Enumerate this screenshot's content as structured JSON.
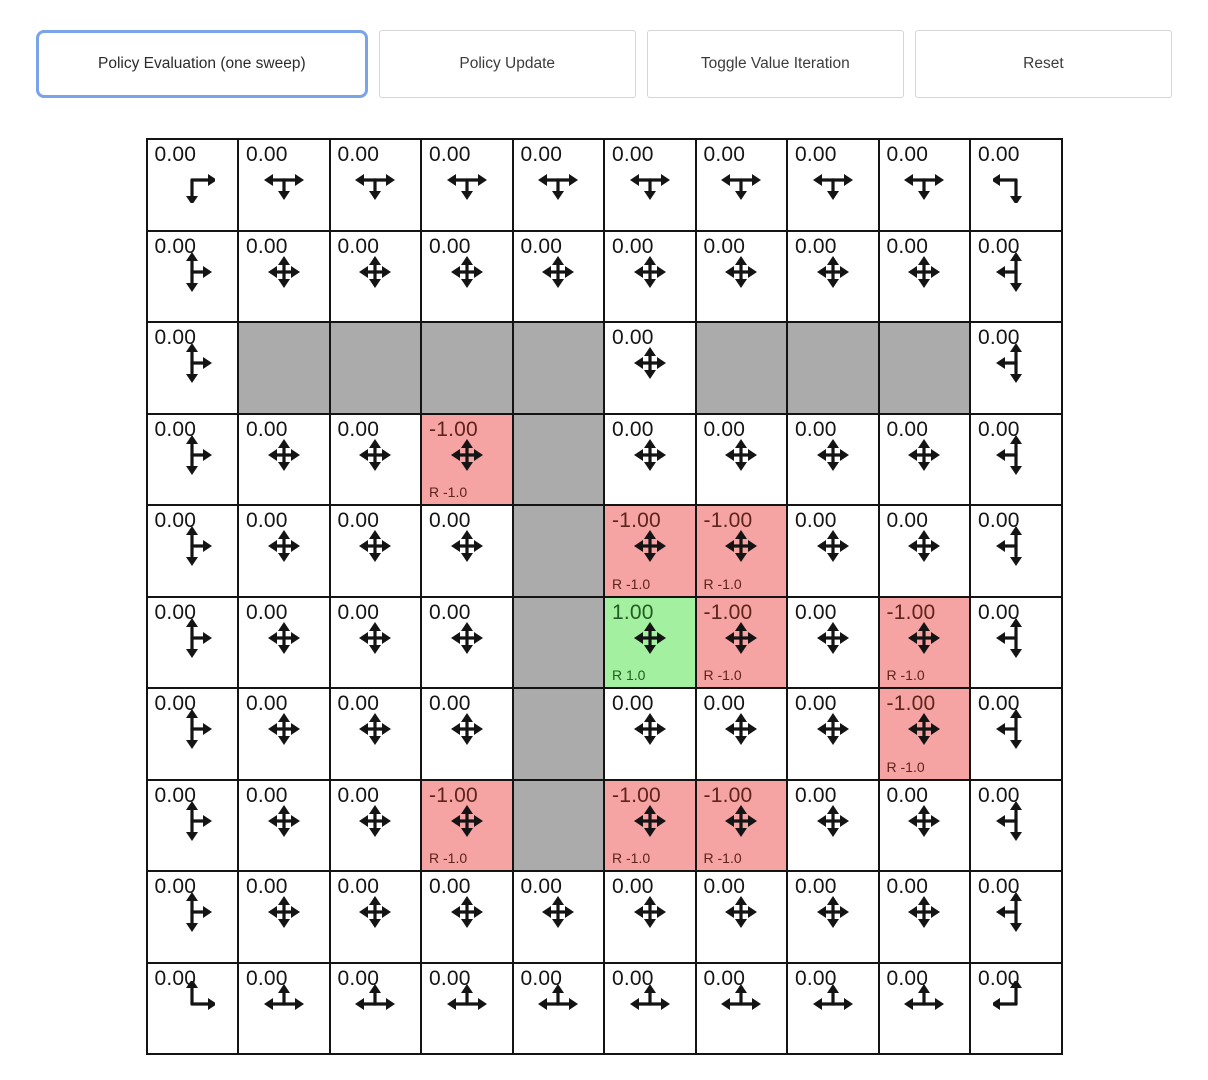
{
  "toolbar": {
    "buttons": [
      {
        "label": "Policy Evaluation (one sweep)",
        "focused": true
      },
      {
        "label": "Policy Update",
        "focused": false
      },
      {
        "label": "Toggle Value Iteration",
        "focused": false
      },
      {
        "label": "Reset",
        "focused": false
      }
    ]
  },
  "colors": {
    "wall_bg": "#ababab",
    "negative_bg": "#f5a3a3",
    "positive_bg": "#a3f0a0",
    "grid_line": "#141414",
    "text": "#141414",
    "negative_text": "#5d241a",
    "positive_text": "#215c21",
    "focus_ring": "#7ba3e8",
    "button_border": "#d6d6d6"
  },
  "grid": {
    "rows": 10,
    "cols": 10,
    "cells": [
      {
        "row": 0,
        "col": 0,
        "type": "normal",
        "value": "0.00",
        "dirs": "RD"
      },
      {
        "row": 0,
        "col": 1,
        "type": "normal",
        "value": "0.00",
        "dirs": "LRD"
      },
      {
        "row": 0,
        "col": 2,
        "type": "normal",
        "value": "0.00",
        "dirs": "LRD"
      },
      {
        "row": 0,
        "col": 3,
        "type": "normal",
        "value": "0.00",
        "dirs": "LRD"
      },
      {
        "row": 0,
        "col": 4,
        "type": "normal",
        "value": "0.00",
        "dirs": "LRD"
      },
      {
        "row": 0,
        "col": 5,
        "type": "normal",
        "value": "0.00",
        "dirs": "LRD"
      },
      {
        "row": 0,
        "col": 6,
        "type": "normal",
        "value": "0.00",
        "dirs": "LRD"
      },
      {
        "row": 0,
        "col": 7,
        "type": "normal",
        "value": "0.00",
        "dirs": "LRD"
      },
      {
        "row": 0,
        "col": 8,
        "type": "normal",
        "value": "0.00",
        "dirs": "LRD"
      },
      {
        "row": 0,
        "col": 9,
        "type": "normal",
        "value": "0.00",
        "dirs": "LD"
      },
      {
        "row": 1,
        "col": 0,
        "type": "normal",
        "value": "0.00",
        "dirs": "URD"
      },
      {
        "row": 1,
        "col": 1,
        "type": "normal",
        "value": "0.00",
        "dirs": "ULRD"
      },
      {
        "row": 1,
        "col": 2,
        "type": "normal",
        "value": "0.00",
        "dirs": "ULRD"
      },
      {
        "row": 1,
        "col": 3,
        "type": "normal",
        "value": "0.00",
        "dirs": "ULRD"
      },
      {
        "row": 1,
        "col": 4,
        "type": "normal",
        "value": "0.00",
        "dirs": "ULRD"
      },
      {
        "row": 1,
        "col": 5,
        "type": "normal",
        "value": "0.00",
        "dirs": "ULRD"
      },
      {
        "row": 1,
        "col": 6,
        "type": "normal",
        "value": "0.00",
        "dirs": "ULRD"
      },
      {
        "row": 1,
        "col": 7,
        "type": "normal",
        "value": "0.00",
        "dirs": "ULRD"
      },
      {
        "row": 1,
        "col": 8,
        "type": "normal",
        "value": "0.00",
        "dirs": "ULRD"
      },
      {
        "row": 1,
        "col": 9,
        "type": "normal",
        "value": "0.00",
        "dirs": "ULD"
      },
      {
        "row": 2,
        "col": 0,
        "type": "normal",
        "value": "0.00",
        "dirs": "URD"
      },
      {
        "row": 2,
        "col": 1,
        "type": "wall"
      },
      {
        "row": 2,
        "col": 2,
        "type": "wall"
      },
      {
        "row": 2,
        "col": 3,
        "type": "wall"
      },
      {
        "row": 2,
        "col": 4,
        "type": "wall"
      },
      {
        "row": 2,
        "col": 5,
        "type": "normal",
        "value": "0.00",
        "dirs": "ULRD"
      },
      {
        "row": 2,
        "col": 6,
        "type": "wall"
      },
      {
        "row": 2,
        "col": 7,
        "type": "wall"
      },
      {
        "row": 2,
        "col": 8,
        "type": "wall"
      },
      {
        "row": 2,
        "col": 9,
        "type": "normal",
        "value": "0.00",
        "dirs": "ULD"
      },
      {
        "row": 3,
        "col": 0,
        "type": "normal",
        "value": "0.00",
        "dirs": "URD"
      },
      {
        "row": 3,
        "col": 1,
        "type": "normal",
        "value": "0.00",
        "dirs": "ULRD"
      },
      {
        "row": 3,
        "col": 2,
        "type": "normal",
        "value": "0.00",
        "dirs": "ULRD"
      },
      {
        "row": 3,
        "col": 3,
        "type": "negative",
        "value": "-1.00",
        "reward": "R -1.0",
        "dirs": "ULRD"
      },
      {
        "row": 3,
        "col": 4,
        "type": "wall"
      },
      {
        "row": 3,
        "col": 5,
        "type": "normal",
        "value": "0.00",
        "dirs": "ULRD"
      },
      {
        "row": 3,
        "col": 6,
        "type": "normal",
        "value": "0.00",
        "dirs": "ULRD"
      },
      {
        "row": 3,
        "col": 7,
        "type": "normal",
        "value": "0.00",
        "dirs": "ULRD"
      },
      {
        "row": 3,
        "col": 8,
        "type": "normal",
        "value": "0.00",
        "dirs": "ULRD"
      },
      {
        "row": 3,
        "col": 9,
        "type": "normal",
        "value": "0.00",
        "dirs": "ULD"
      },
      {
        "row": 4,
        "col": 0,
        "type": "normal",
        "value": "0.00",
        "dirs": "URD"
      },
      {
        "row": 4,
        "col": 1,
        "type": "normal",
        "value": "0.00",
        "dirs": "ULRD"
      },
      {
        "row": 4,
        "col": 2,
        "type": "normal",
        "value": "0.00",
        "dirs": "ULRD"
      },
      {
        "row": 4,
        "col": 3,
        "type": "normal",
        "value": "0.00",
        "dirs": "ULRD"
      },
      {
        "row": 4,
        "col": 4,
        "type": "wall"
      },
      {
        "row": 4,
        "col": 5,
        "type": "negative",
        "value": "-1.00",
        "reward": "R -1.0",
        "dirs": "ULRD"
      },
      {
        "row": 4,
        "col": 6,
        "type": "negative",
        "value": "-1.00",
        "reward": "R -1.0",
        "dirs": "ULRD"
      },
      {
        "row": 4,
        "col": 7,
        "type": "normal",
        "value": "0.00",
        "dirs": "ULRD"
      },
      {
        "row": 4,
        "col": 8,
        "type": "normal",
        "value": "0.00",
        "dirs": "ULRD"
      },
      {
        "row": 4,
        "col": 9,
        "type": "normal",
        "value": "0.00",
        "dirs": "ULD"
      },
      {
        "row": 5,
        "col": 0,
        "type": "normal",
        "value": "0.00",
        "dirs": "URD"
      },
      {
        "row": 5,
        "col": 1,
        "type": "normal",
        "value": "0.00",
        "dirs": "ULRD"
      },
      {
        "row": 5,
        "col": 2,
        "type": "normal",
        "value": "0.00",
        "dirs": "ULRD"
      },
      {
        "row": 5,
        "col": 3,
        "type": "normal",
        "value": "0.00",
        "dirs": "ULRD"
      },
      {
        "row": 5,
        "col": 4,
        "type": "wall"
      },
      {
        "row": 5,
        "col": 5,
        "type": "positive",
        "value": "1.00",
        "reward": "R 1.0",
        "dirs": "ULRD"
      },
      {
        "row": 5,
        "col": 6,
        "type": "negative",
        "value": "-1.00",
        "reward": "R -1.0",
        "dirs": "ULRD"
      },
      {
        "row": 5,
        "col": 7,
        "type": "normal",
        "value": "0.00",
        "dirs": "ULRD"
      },
      {
        "row": 5,
        "col": 8,
        "type": "negative",
        "value": "-1.00",
        "reward": "R -1.0",
        "dirs": "ULRD"
      },
      {
        "row": 5,
        "col": 9,
        "type": "normal",
        "value": "0.00",
        "dirs": "ULD"
      },
      {
        "row": 6,
        "col": 0,
        "type": "normal",
        "value": "0.00",
        "dirs": "URD"
      },
      {
        "row": 6,
        "col": 1,
        "type": "normal",
        "value": "0.00",
        "dirs": "ULRD"
      },
      {
        "row": 6,
        "col": 2,
        "type": "normal",
        "value": "0.00",
        "dirs": "ULRD"
      },
      {
        "row": 6,
        "col": 3,
        "type": "normal",
        "value": "0.00",
        "dirs": "ULRD"
      },
      {
        "row": 6,
        "col": 4,
        "type": "wall"
      },
      {
        "row": 6,
        "col": 5,
        "type": "normal",
        "value": "0.00",
        "dirs": "ULRD"
      },
      {
        "row": 6,
        "col": 6,
        "type": "normal",
        "value": "0.00",
        "dirs": "ULRD"
      },
      {
        "row": 6,
        "col": 7,
        "type": "normal",
        "value": "0.00",
        "dirs": "ULRD"
      },
      {
        "row": 6,
        "col": 8,
        "type": "negative",
        "value": "-1.00",
        "reward": "R -1.0",
        "dirs": "ULRD"
      },
      {
        "row": 6,
        "col": 9,
        "type": "normal",
        "value": "0.00",
        "dirs": "ULD"
      },
      {
        "row": 7,
        "col": 0,
        "type": "normal",
        "value": "0.00",
        "dirs": "URD"
      },
      {
        "row": 7,
        "col": 1,
        "type": "normal",
        "value": "0.00",
        "dirs": "ULRD"
      },
      {
        "row": 7,
        "col": 2,
        "type": "normal",
        "value": "0.00",
        "dirs": "ULRD"
      },
      {
        "row": 7,
        "col": 3,
        "type": "negative",
        "value": "-1.00",
        "reward": "R -1.0",
        "dirs": "ULRD"
      },
      {
        "row": 7,
        "col": 4,
        "type": "wall"
      },
      {
        "row": 7,
        "col": 5,
        "type": "negative",
        "value": "-1.00",
        "reward": "R -1.0",
        "dirs": "ULRD"
      },
      {
        "row": 7,
        "col": 6,
        "type": "negative",
        "value": "-1.00",
        "reward": "R -1.0",
        "dirs": "ULRD"
      },
      {
        "row": 7,
        "col": 7,
        "type": "normal",
        "value": "0.00",
        "dirs": "ULRD"
      },
      {
        "row": 7,
        "col": 8,
        "type": "normal",
        "value": "0.00",
        "dirs": "ULRD"
      },
      {
        "row": 7,
        "col": 9,
        "type": "normal",
        "value": "0.00",
        "dirs": "ULD"
      },
      {
        "row": 8,
        "col": 0,
        "type": "normal",
        "value": "0.00",
        "dirs": "URD"
      },
      {
        "row": 8,
        "col": 1,
        "type": "normal",
        "value": "0.00",
        "dirs": "ULRD"
      },
      {
        "row": 8,
        "col": 2,
        "type": "normal",
        "value": "0.00",
        "dirs": "ULRD"
      },
      {
        "row": 8,
        "col": 3,
        "type": "normal",
        "value": "0.00",
        "dirs": "ULRD"
      },
      {
        "row": 8,
        "col": 4,
        "type": "normal",
        "value": "0.00",
        "dirs": "ULRD"
      },
      {
        "row": 8,
        "col": 5,
        "type": "normal",
        "value": "0.00",
        "dirs": "ULRD"
      },
      {
        "row": 8,
        "col": 6,
        "type": "normal",
        "value": "0.00",
        "dirs": "ULRD"
      },
      {
        "row": 8,
        "col": 7,
        "type": "normal",
        "value": "0.00",
        "dirs": "ULRD"
      },
      {
        "row": 8,
        "col": 8,
        "type": "normal",
        "value": "0.00",
        "dirs": "ULRD"
      },
      {
        "row": 8,
        "col": 9,
        "type": "normal",
        "value": "0.00",
        "dirs": "ULD"
      },
      {
        "row": 9,
        "col": 0,
        "type": "normal",
        "value": "0.00",
        "dirs": "UR"
      },
      {
        "row": 9,
        "col": 1,
        "type": "normal",
        "value": "0.00",
        "dirs": "ULR"
      },
      {
        "row": 9,
        "col": 2,
        "type": "normal",
        "value": "0.00",
        "dirs": "ULR"
      },
      {
        "row": 9,
        "col": 3,
        "type": "normal",
        "value": "0.00",
        "dirs": "ULR"
      },
      {
        "row": 9,
        "col": 4,
        "type": "normal",
        "value": "0.00",
        "dirs": "ULR"
      },
      {
        "row": 9,
        "col": 5,
        "type": "normal",
        "value": "0.00",
        "dirs": "ULR"
      },
      {
        "row": 9,
        "col": 6,
        "type": "normal",
        "value": "0.00",
        "dirs": "ULR"
      },
      {
        "row": 9,
        "col": 7,
        "type": "normal",
        "value": "0.00",
        "dirs": "ULR"
      },
      {
        "row": 9,
        "col": 8,
        "type": "normal",
        "value": "0.00",
        "dirs": "ULR"
      },
      {
        "row": 9,
        "col": 9,
        "type": "normal",
        "value": "0.00",
        "dirs": "UL"
      }
    ]
  }
}
